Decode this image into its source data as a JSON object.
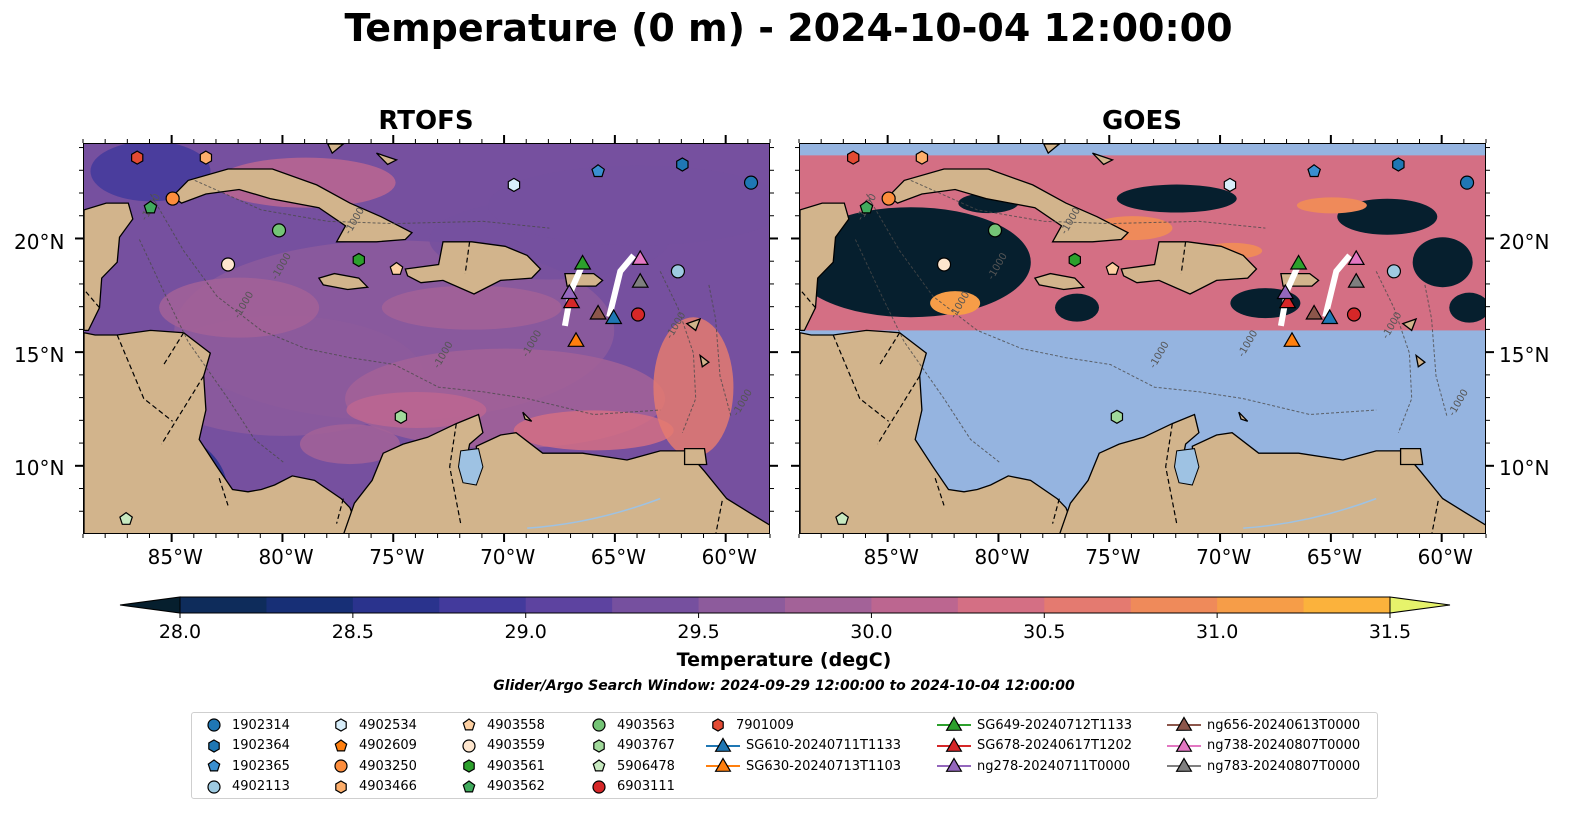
{
  "title": "Temperature (0 m) - 2024-10-04 12:00:00",
  "panels": [
    {
      "title": "RTOFS"
    },
    {
      "title": "GOES"
    }
  ],
  "map": {
    "lon_range": [
      -89,
      -58
    ],
    "lat_range": [
      7,
      24.2
    ],
    "lon_ticks": [
      "85°W",
      "80°W",
      "75°W",
      "70°W",
      "65°W",
      "60°W"
    ],
    "lat_ticks": [
      "20°N",
      "15°N",
      "10°N"
    ],
    "contour_label": "-1000",
    "land_color": "#d2b48c",
    "nodata_color": "#95b4e0",
    "goes_coverage_lat": [
      16,
      23.7
    ]
  },
  "colorbar": {
    "label": "Temperature (degC)",
    "range": [
      28.0,
      31.5
    ],
    "step": 0.25,
    "ticks": [
      "28.0",
      "28.5",
      "29.0",
      "29.5",
      "30.0",
      "30.5",
      "31.0",
      "31.5"
    ],
    "colors": [
      "#06253a",
      "#0e2c5b",
      "#172f76",
      "#2a338d",
      "#433a9c",
      "#5d43a0",
      "#76509f",
      "#8d5b9c",
      "#a36298",
      "#bc6690",
      "#d46f84",
      "#e47a70",
      "#ef8a5a",
      "#f69d48",
      "#fbb23c",
      "#fbc843",
      "#f3e05b"
    ],
    "extend_low": "#061f2e",
    "extend_high": "#e6f36b"
  },
  "search_window": "Glider/Argo Search Window: 2024-09-29 12:00:00 to 2024-10-04 12:00:00",
  "platforms": [
    {
      "id": "1902314",
      "marker": "circle",
      "color": "#1f77b4",
      "lon": -58.9,
      "lat": 22.5
    },
    {
      "id": "1902364",
      "marker": "hexagon",
      "color": "#1f77b4",
      "lon": -62.0,
      "lat": 23.3
    },
    {
      "id": "1902365",
      "marker": "pentagon",
      "color": "#3a8fd0",
      "lon": -65.8,
      "lat": 23.0
    },
    {
      "id": "4902113",
      "marker": "circle",
      "color": "#9ecae1",
      "lon": -62.2,
      "lat": 18.6
    },
    {
      "id": "4902534",
      "marker": "hexagon",
      "color": "#d8eefa",
      "lon": -69.6,
      "lat": 22.4
    },
    {
      "id": "4902609",
      "marker": "pentagon",
      "color": "#ff7f0e",
      "lon": -85.0,
      "lat": 21.8
    },
    {
      "id": "4903250",
      "marker": "circle",
      "color": "#fd8d3c",
      "lon": -85.0,
      "lat": 21.8
    },
    {
      "id": "4903466",
      "marker": "hexagon",
      "color": "#fdae6b",
      "lon": -83.5,
      "lat": 23.6
    },
    {
      "id": "4903558",
      "marker": "pentagon",
      "color": "#fdd0a2",
      "lon": -74.9,
      "lat": 18.7
    },
    {
      "id": "4903559",
      "marker": "circle",
      "color": "#fee6ce",
      "lon": -82.5,
      "lat": 18.9
    },
    {
      "id": "4903561",
      "marker": "hexagon",
      "color": "#2ca02c",
      "lon": -76.6,
      "lat": 19.1
    },
    {
      "id": "4903562",
      "marker": "pentagon",
      "color": "#41ab5d",
      "lon": -86.0,
      "lat": 21.4
    },
    {
      "id": "4903563",
      "marker": "circle",
      "color": "#74c476",
      "lon": -80.2,
      "lat": 20.4
    },
    {
      "id": "4903767",
      "marker": "hexagon",
      "color": "#a1d99b",
      "lon": -74.7,
      "lat": 12.2
    },
    {
      "id": "5906478",
      "marker": "pentagon",
      "color": "#c7e9c0",
      "lon": -87.1,
      "lat": 7.7
    },
    {
      "id": "6903111",
      "marker": "circle",
      "color": "#d62728",
      "lon": -64.0,
      "lat": 16.7
    },
    {
      "id": "7901009",
      "marker": "hexagon",
      "color": "#e34a33",
      "lon": -86.6,
      "lat": 23.6
    },
    {
      "id": "SG610-20240711T1133",
      "marker": "triangle",
      "color": "#1f77b4",
      "lon": -65.1,
      "lat": 16.5
    },
    {
      "id": "SG630-20240713T1103",
      "marker": "triangle",
      "color": "#ff7f0e",
      "lon": -66.8,
      "lat": 15.5
    },
    {
      "id": "SG649-20240712T1133",
      "marker": "triangle",
      "color": "#2ca02c",
      "lon": -66.5,
      "lat": 18.9
    },
    {
      "id": "SG678-20240617T1202",
      "marker": "triangle",
      "color": "#d62728",
      "lon": -67.0,
      "lat": 17.2
    },
    {
      "id": "ng278-20240711T0000",
      "marker": "triangle",
      "color": "#9467bd",
      "lon": -67.1,
      "lat": 17.6
    },
    {
      "id": "ng656-20240613T0000",
      "marker": "triangle",
      "color": "#8c564b",
      "lon": -65.8,
      "lat": 16.7
    },
    {
      "id": "ng738-20240807T0000",
      "marker": "triangle",
      "color": "#e377c2",
      "lon": -63.9,
      "lat": 19.1
    },
    {
      "id": "ng783-20240807T0000",
      "marker": "triangle",
      "color": "#7f7f7f",
      "lon": -63.9,
      "lat": 18.1
    }
  ]
}
